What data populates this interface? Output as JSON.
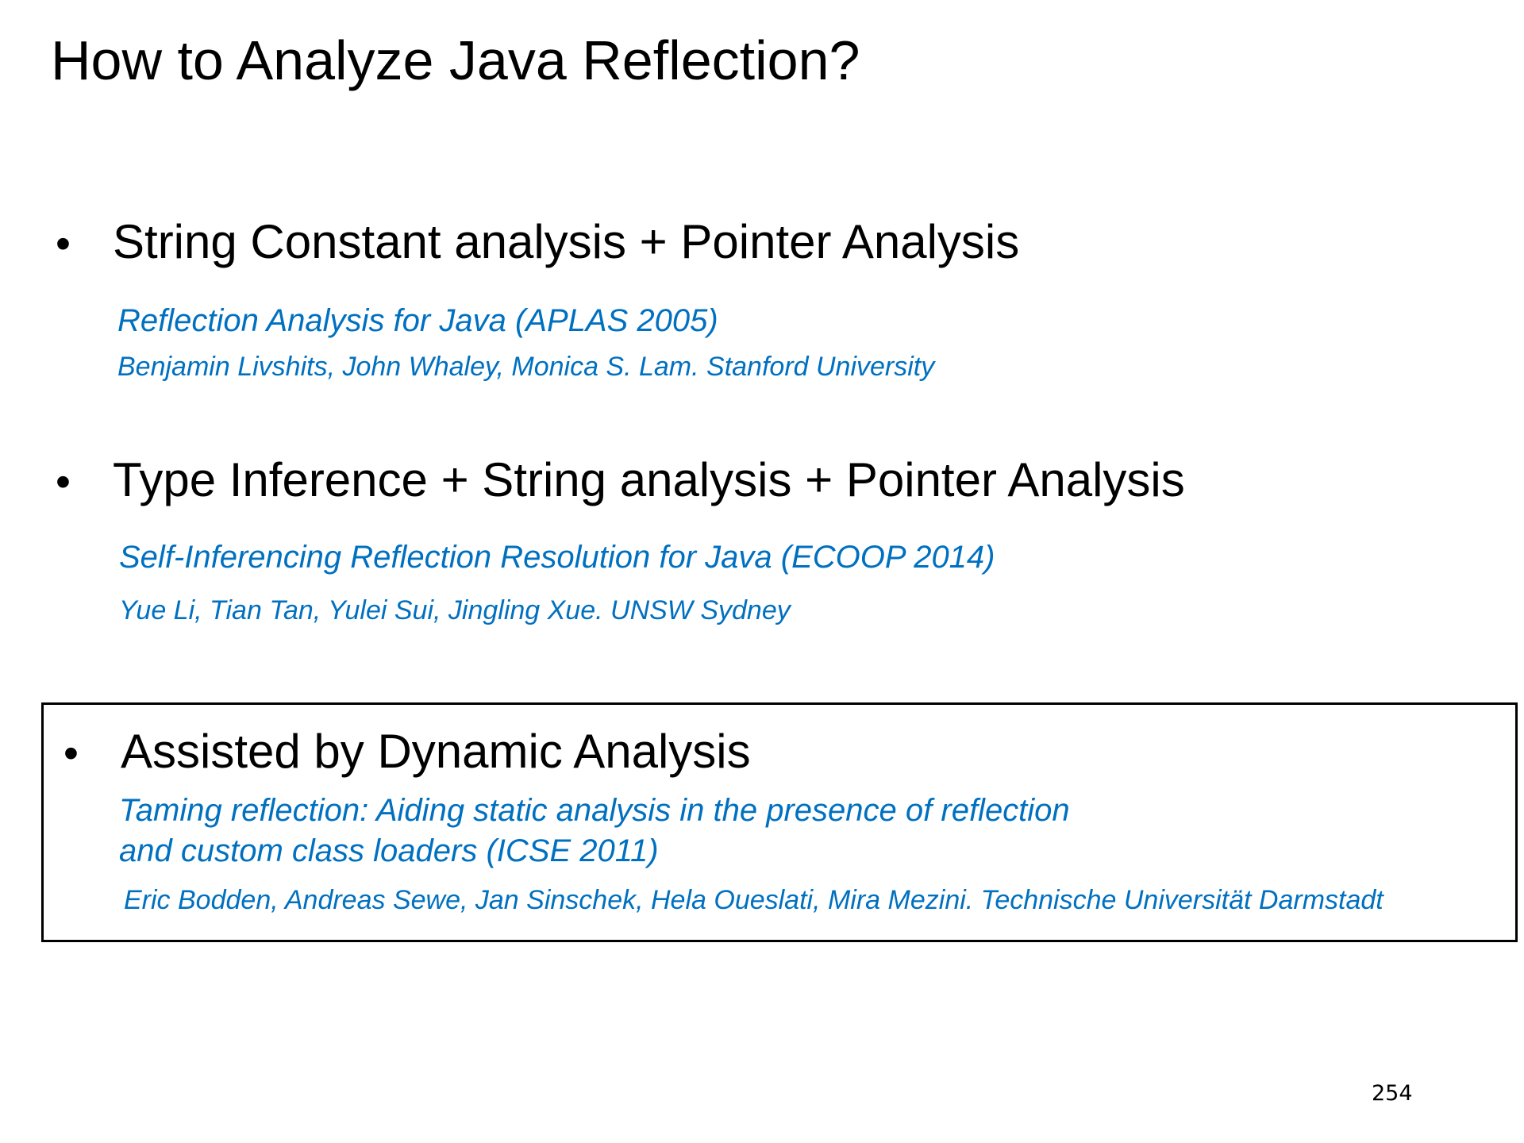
{
  "slide": {
    "title": "How to Analyze Java Reflection?",
    "page_number": "254",
    "accent_color": "#0070c0",
    "sections": [
      {
        "bullet": "•",
        "heading": "String Constant analysis + Pointer Analysis",
        "paper_title": "Reflection Analysis for Java (APLAS 2005)",
        "authors": "Benjamin Livshits, John Whaley, Monica S. Lam. Stanford University"
      },
      {
        "bullet": "•",
        "heading": "Type Inference + String analysis + Pointer Analysis",
        "paper_title": "Self-Inferencing Reflection Resolution for Java (ECOOP 2014)",
        "authors": "Yue Li, Tian Tan, Yulei Sui, Jingling Xue. UNSW Sydney"
      },
      {
        "bullet": "•",
        "heading": "Assisted by Dynamic Analysis",
        "paper_title_line1": "Taming reflection: Aiding static analysis in the presence of reflection",
        "paper_title_line2": "and custom class loaders (ICSE 2011)",
        "authors": "Eric Bodden, Andreas Sewe, Jan Sinschek, Hela Oueslati, Mira Mezini. Technische Universität Darmstadt"
      }
    ]
  }
}
